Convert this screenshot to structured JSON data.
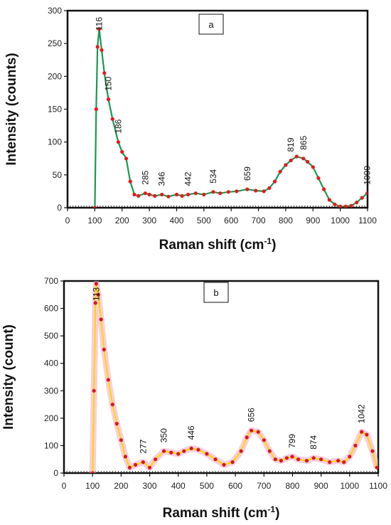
{
  "chart_data": [
    {
      "type": "line",
      "panel_label": "a",
      "xlabel": "Raman shift (cm",
      "xlabel_sup": "-1",
      "xlabel_end": ")",
      "ylabel": "Intensity (counts)",
      "xlim": [
        0,
        1100
      ],
      "ylim": [
        0,
        300
      ],
      "xticks": [
        0,
        100,
        200,
        300,
        400,
        500,
        600,
        700,
        800,
        900,
        1000,
        1100
      ],
      "yticks": [
        0,
        50,
        100,
        150,
        200,
        250,
        300
      ],
      "line_color": "#1a9850",
      "marker_color": "#e31a1c",
      "peak_labels": [
        {
          "text": "116",
          "x": 116
        },
        {
          "text": "150",
          "x": 150
        },
        {
          "text": "186",
          "x": 186
        },
        {
          "text": "285",
          "x": 285
        },
        {
          "text": "346",
          "x": 346
        },
        {
          "text": "442",
          "x": 442
        },
        {
          "text": "534",
          "x": 534
        },
        {
          "text": "659",
          "x": 659
        },
        {
          "text": "819",
          "x": 819
        },
        {
          "text": "865",
          "x": 865
        },
        {
          "text": "1099",
          "x": 1099
        }
      ],
      "x": [
        100,
        105,
        110,
        116,
        125,
        135,
        150,
        165,
        186,
        200,
        215,
        230,
        245,
        260,
        285,
        300,
        320,
        346,
        370,
        400,
        420,
        442,
        470,
        500,
        534,
        560,
        590,
        620,
        659,
        690,
        720,
        740,
        760,
        780,
        800,
        819,
        840,
        865,
        880,
        900,
        920,
        940,
        960,
        980,
        1000,
        1020,
        1040,
        1060,
        1080,
        1099
      ],
      "values": [
        0,
        150,
        245,
        272,
        240,
        205,
        165,
        135,
        100,
        85,
        75,
        40,
        20,
        18,
        22,
        20,
        18,
        20,
        17,
        20,
        18,
        20,
        22,
        20,
        24,
        22,
        24,
        25,
        28,
        26,
        25,
        30,
        40,
        55,
        65,
        72,
        78,
        75,
        70,
        62,
        45,
        28,
        12,
        5,
        2,
        2,
        3,
        8,
        15,
        22
      ]
    },
    {
      "type": "line",
      "panel_label": "b",
      "xlabel": "Raman  shift (cm",
      "xlabel_sup": "-1",
      "xlabel_end": ")",
      "ylabel": "Intensity (count)",
      "xlim": [
        0,
        1100
      ],
      "ylim": [
        0,
        700
      ],
      "xticks": [
        0,
        100,
        200,
        300,
        400,
        500,
        600,
        700,
        800,
        900,
        1000,
        1100
      ],
      "yticks": [
        0,
        100,
        200,
        300,
        400,
        500,
        600,
        700
      ],
      "line_color": "#ffd700",
      "marker_color": "#d7191c",
      "peak_labels": [
        {
          "text": "113",
          "x": 113
        },
        {
          "text": "277",
          "x": 277
        },
        {
          "text": "350",
          "x": 350
        },
        {
          "text": "446",
          "x": 446
        },
        {
          "text": "656",
          "x": 656
        },
        {
          "text": "799",
          "x": 799
        },
        {
          "text": "874",
          "x": 874
        },
        {
          "text": "1042",
          "x": 1042
        }
      ],
      "x": [
        100,
        105,
        110,
        113,
        120,
        130,
        140,
        155,
        170,
        185,
        200,
        215,
        230,
        250,
        277,
        300,
        320,
        350,
        375,
        400,
        420,
        446,
        470,
        500,
        530,
        560,
        590,
        620,
        640,
        656,
        680,
        700,
        720,
        740,
        760,
        780,
        799,
        820,
        850,
        874,
        900,
        930,
        960,
        980,
        1000,
        1020,
        1042,
        1060,
        1080,
        1095
      ],
      "values": [
        0,
        300,
        620,
        690,
        650,
        560,
        450,
        340,
        250,
        180,
        120,
        60,
        20,
        30,
        40,
        20,
        50,
        80,
        75,
        70,
        80,
        90,
        85,
        70,
        50,
        30,
        40,
        80,
        130,
        155,
        150,
        120,
        80,
        50,
        45,
        55,
        60,
        50,
        45,
        55,
        50,
        40,
        45,
        40,
        60,
        100,
        150,
        140,
        80,
        20
      ]
    }
  ]
}
